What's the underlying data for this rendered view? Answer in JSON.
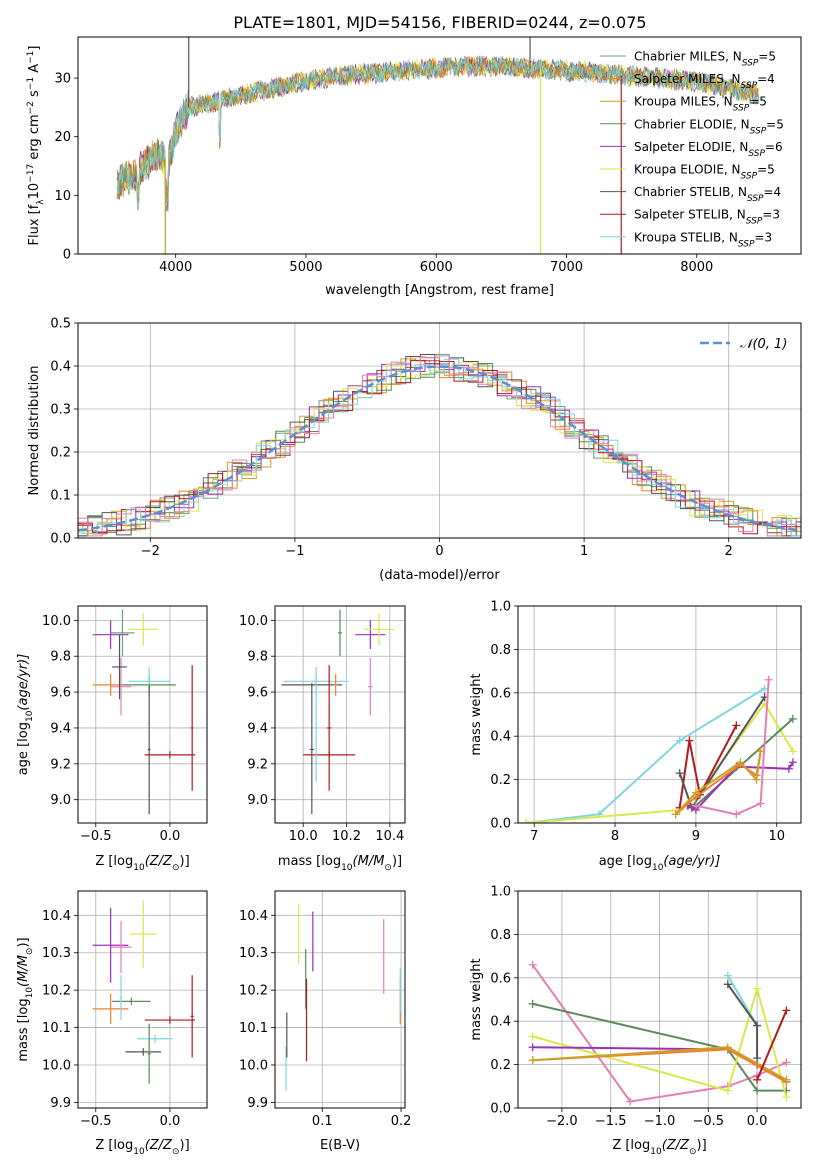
{
  "figure_title": "PLATE=1801, MJD=54156, FIBERID=0244, z=0.075",
  "palette": {
    "Chabrier MILES": "#6aa27a",
    "Salpeter MILES": "#f07f2a",
    "Kroupa MILES": "#c9a227",
    "Chabrier ELODIE": "#5b8a5c",
    "Salpeter ELODIE": "#9b30b8",
    "Kroupa ELODIE": "#d9e84a",
    "Chabrier STELIB": "#555555",
    "Salpeter STELIB": "#b01a1a",
    "Kroupa STELIB": "#7fd6e0",
    "Pink": "#e37fb6"
  },
  "chart_data": [
    {
      "id": "spectrum",
      "type": "line",
      "title": "",
      "xlabel": "wavelength [Angstrom, rest frame]",
      "ylabel_main": "Flux [f",
      "ylabel_sub": "λ",
      "ylabel_rest": "10",
      "ylabel_sup1": "−17",
      "ylabel_tail": " erg cm",
      "ylabel_sup2": "−2",
      "ylabel_tail2": " s",
      "ylabel_sup3": "−1",
      "ylabel_tail3": " A",
      "ylabel_sup4": "−1",
      "ylabel_end": "]",
      "xlim": [
        3250,
        8800
      ],
      "ylim": [
        0,
        37
      ],
      "xticks": [
        4000,
        5000,
        6000,
        7000,
        8000
      ],
      "yticks": [
        0,
        10,
        20,
        30
      ],
      "legend_placement": "right",
      "legend": [
        {
          "name": "Chabrier MILES, N",
          "sub": "SSP",
          "tail": "=5"
        },
        {
          "name": "Salpeter MILES, N",
          "sub": "SSP",
          "tail": "=4"
        },
        {
          "name": "Kroupa MILES, N",
          "sub": "SSP",
          "tail": "=5"
        },
        {
          "name": "Chabrier ELODIE, N",
          "sub": "SSP",
          "tail": "=5"
        },
        {
          "name": "Salpeter ELODIE, N",
          "sub": "SSP",
          "tail": "=6"
        },
        {
          "name": "Kroupa ELODIE, N",
          "sub": "SSP",
          "tail": "=5"
        },
        {
          "name": "Chabrier STELIB, N",
          "sub": "SSP",
          "tail": "=4"
        },
        {
          "name": "Salpeter STELIB, N",
          "sub": "SSP",
          "tail": "=3"
        },
        {
          "name": "Kroupa STELIB, N",
          "sub": "SSP",
          "tail": "=3"
        }
      ],
      "continuum": {
        "x": [
          3550,
          3700,
          3850,
          3950,
          4000,
          4100,
          4300,
          4500,
          4800,
          5000,
          5300,
          5600,
          5900,
          6200,
          6500,
          6800,
          7000,
          7200,
          7400,
          7600,
          7800,
          8000,
          8200,
          8500
        ],
        "y": [
          12,
          14,
          17,
          16,
          21,
          25,
          26,
          27,
          28.5,
          29.5,
          30.5,
          31,
          31.5,
          32,
          32,
          31.5,
          31.3,
          31,
          30.5,
          30.2,
          29.8,
          29.5,
          28.5,
          27
        ]
      },
      "spikes": [
        {
          "x": 4100,
          "y": 37,
          "series": "Chabrier STELIB"
        },
        {
          "x": 6720,
          "y": 37,
          "series": "Chabrier STELIB"
        },
        {
          "x": 3920,
          "y": 0,
          "series": "Kroupa MILES"
        },
        {
          "x": 6800,
          "y": 0,
          "series": "Kroupa ELODIE"
        },
        {
          "x": 7420,
          "y": 0,
          "series": "Salpeter STELIB"
        }
      ]
    },
    {
      "id": "residuals",
      "type": "histogram",
      "xlabel": "(data-model)/error",
      "ylabel": "Normed distribution",
      "xlim": [
        -2.5,
        2.5
      ],
      "ylim": [
        0,
        0.5
      ],
      "xticks": [
        -2,
        -1,
        0,
        1,
        2
      ],
      "xticklabels": [
        "−2",
        "−1",
        "0",
        "1",
        "2"
      ],
      "yticks": [
        0.0,
        0.1,
        0.2,
        0.3,
        0.4,
        0.5
      ],
      "yticklabels": [
        "0.0",
        "0.1",
        "0.2",
        "0.3",
        "0.4",
        "0.5"
      ],
      "legend": {
        "label": "𝒩(0, 1)",
        "placement": "top-right"
      },
      "bin_width": 0.1,
      "gaussian": {
        "mu": 0,
        "sigma": 1
      }
    },
    {
      "id": "age-vs-Z",
      "type": "errorbar",
      "xlabel": "Z [log",
      "xlabel_sub": "10",
      "xlabel_rest": "(Z/Z",
      "xlabel_sun": "⊙",
      "xlabel_end": ")]",
      "ylabel": "age  [log",
      "ylabel_sub": "10",
      "ylabel_rest": "(age/yr)]",
      "xlim": [
        -0.62,
        0.25
      ],
      "ylim": [
        8.87,
        10.08
      ],
      "xticks": [
        -0.5,
        0.0
      ],
      "xticklabels": [
        "−0.5",
        "0.0"
      ],
      "yticks": [
        9.0,
        9.2,
        9.4,
        9.6,
        9.8,
        10.0
      ],
      "yticklabels": [
        "9.0",
        "9.2",
        "9.4",
        "9.6",
        "9.8",
        "10.0"
      ],
      "points": [
        {
          "series": "Salpeter ELODIE",
          "x": -0.4,
          "xerr": 0.12,
          "y": 9.92,
          "yerr": 0.08
        },
        {
          "series": "Chabrier MILES",
          "x": -0.32,
          "xerr": 0.08,
          "y": 9.93,
          "yerr": 0.13
        },
        {
          "series": "Kroupa ELODIE",
          "x": -0.18,
          "xerr": 0.1,
          "y": 9.95,
          "yerr": 0.09
        },
        {
          "series": "Pink",
          "x": -0.33,
          "xerr": 0.07,
          "y": 9.63,
          "yerr": 0.16
        },
        {
          "series": "Salpeter MILES",
          "x": -0.4,
          "xerr": 0.12,
          "y": 9.64,
          "yerr": 0.06
        },
        {
          "series": "Chabrier STELIB",
          "x": -0.34,
          "xerr": 0.05,
          "y": 9.74,
          "yerr": 0.18
        },
        {
          "series": "Chabrier ELODIE",
          "x": -0.14,
          "xerr": 0.18,
          "y": 9.64,
          "yerr": 0.05
        },
        {
          "series": "Kroupa STELIB",
          "x": -0.14,
          "xerr": 0.14,
          "y": 9.66,
          "yerr": 0.08
        },
        {
          "series": "Chabrier STELIB",
          "x": -0.14,
          "xerr": 0.01,
          "y": 9.28,
          "yerr": 0.36
        },
        {
          "series": "Salpeter STELIB",
          "x": 0.0,
          "xerr": 0.17,
          "y": 9.25,
          "yerr": 0.02
        },
        {
          "series": "Salpeter STELIB",
          "x": 0.15,
          "xerr": 0.01,
          "y": 9.4,
          "yerr": 0.35
        }
      ]
    },
    {
      "id": "age-vs-mass",
      "type": "errorbar",
      "xlabel": "mass [log",
      "xlabel_sub": "10",
      "xlabel_rest": "(M/M",
      "xlabel_sun": "⊙",
      "xlabel_end": ")]",
      "xlim": [
        9.87,
        10.47
      ],
      "ylim": [
        8.87,
        10.08
      ],
      "xticks": [
        10.0,
        10.2,
        10.4
      ],
      "xticklabels": [
        "10.0",
        "10.2",
        "10.4"
      ],
      "yticks": [
        9.0,
        9.2,
        9.4,
        9.6,
        9.8,
        10.0
      ],
      "yticklabels": [
        "9.0",
        "9.2",
        "9.4",
        "9.6",
        "9.8",
        "10.0"
      ],
      "points": [
        {
          "series": "Chabrier ELODIE",
          "x": 10.17,
          "xerr": 0.01,
          "y": 9.93,
          "yerr": 0.13
        },
        {
          "series": "Salpeter ELODIE",
          "x": 10.31,
          "xerr": 0.07,
          "y": 9.92,
          "yerr": 0.08
        },
        {
          "series": "Kroupa ELODIE",
          "x": 10.35,
          "xerr": 0.07,
          "y": 9.95,
          "yerr": 0.09
        },
        {
          "series": "Pink",
          "x": 10.31,
          "xerr": 0.01,
          "y": 9.63,
          "yerr": 0.16
        },
        {
          "series": "Kroupa STELIB",
          "x": 10.06,
          "xerr": 0.15,
          "y": 9.66,
          "yerr": 0.08
        },
        {
          "series": "Chabrier STELIB",
          "x": 10.04,
          "xerr": 0.14,
          "y": 9.64,
          "yerr": 0.01
        },
        {
          "series": "Salpeter MILES",
          "x": 10.15,
          "xerr": 0.01,
          "y": 9.64,
          "yerr": 0.06
        },
        {
          "series": "Chabrier STELIB",
          "x": 10.04,
          "xerr": 0.01,
          "y": 9.28,
          "yerr": 0.36
        },
        {
          "series": "Salpeter STELIB",
          "x": 10.12,
          "xerr": 0.12,
          "y": 9.25,
          "yerr": 0.02
        },
        {
          "series": "Salpeter STELIB",
          "x": 10.12,
          "xerr": 0.01,
          "y": 9.4,
          "yerr": 0.35
        },
        {
          "series": "Kroupa STELIB",
          "x": 10.06,
          "xerr": 0.01,
          "y": 9.4,
          "yerr": 0.3
        }
      ]
    },
    {
      "id": "massweight-vs-age",
      "type": "line",
      "xlabel": "age  [log",
      "xlabel_sub": "10",
      "xlabel_rest": "(age/yr)]",
      "ylabel": "mass weight",
      "xlim": [
        6.8,
        10.3
      ],
      "ylim": [
        0.0,
        1.0
      ],
      "xticks": [
        7,
        8,
        9,
        10
      ],
      "xticklabels": [
        "7",
        "8",
        "9",
        "10"
      ],
      "yticks": [
        0.0,
        0.2,
        0.4,
        0.6,
        0.8,
        1.0
      ],
      "yticklabels": [
        "0.0",
        "0.2",
        "0.4",
        "0.6",
        "0.8",
        "1.0"
      ],
      "series": [
        {
          "name": "Kroupa STELIB",
          "x": [
            6.9,
            7.8,
            8.8,
            9.85
          ],
          "y": [
            0.0,
            0.04,
            0.38,
            0.62
          ]
        },
        {
          "name": "Kroupa ELODIE",
          "x": [
            6.9,
            8.8,
            9.0,
            9.85,
            10.2
          ],
          "y": [
            0.0,
            0.06,
            0.12,
            0.55,
            0.33
          ]
        },
        {
          "name": "Salpeter STELIB",
          "x": [
            8.8,
            8.92,
            9.05,
            9.5
          ],
          "y": [
            0.07,
            0.38,
            0.13,
            0.45
          ]
        },
        {
          "name": "Chabrier STELIB",
          "x": [
            8.8,
            8.95,
            9.85
          ],
          "y": [
            0.23,
            0.07,
            0.58
          ]
        },
        {
          "name": "Chabrier ELODIE",
          "x": [
            8.9,
            9.0,
            10.2
          ],
          "y": [
            0.08,
            0.08,
            0.48
          ]
        },
        {
          "name": "Salpeter ELODIE",
          "x": [
            8.9,
            9.0,
            9.5,
            10.15,
            10.2
          ],
          "y": [
            0.08,
            0.06,
            0.26,
            0.25,
            0.28
          ]
        },
        {
          "name": "Salpeter MILES",
          "x": [
            8.75,
            9.0,
            9.55,
            9.75,
            9.8
          ],
          "y": [
            0.04,
            0.12,
            0.27,
            0.22,
            0.33
          ]
        },
        {
          "name": "Kroupa MILES",
          "x": [
            8.75,
            9.0,
            9.55,
            9.75,
            9.8
          ],
          "y": [
            0.04,
            0.14,
            0.28,
            0.2,
            0.33
          ]
        },
        {
          "name": "Pink",
          "x": [
            9.0,
            9.5,
            9.8,
            9.9
          ],
          "y": [
            0.08,
            0.04,
            0.09,
            0.66
          ]
        }
      ]
    },
    {
      "id": "mass-vs-Z",
      "type": "errorbar",
      "xlabel": "Z [log",
      "xlabel_sub": "10",
      "xlabel_rest": "(Z/Z",
      "xlabel_sun": "⊙",
      "xlabel_end": ")]",
      "ylabel": "mass [log",
      "ylabel_sub": "10",
      "ylabel_rest": "(M/M",
      "ylabel_sun": "⊙",
      "ylabel_end": ")]",
      "xlim": [
        -0.62,
        0.25
      ],
      "ylim": [
        9.885,
        10.465
      ],
      "xticks": [
        -0.5,
        0.0
      ],
      "xticklabels": [
        "−0.5",
        "0.0"
      ],
      "yticks": [
        9.9,
        10.0,
        10.1,
        10.2,
        10.3,
        10.4
      ],
      "yticklabels": [
        "9.9",
        "10.0",
        "10.1",
        "10.2",
        "10.3",
        "10.4"
      ],
      "points": [
        {
          "series": "Salpeter ELODIE",
          "x": -0.4,
          "xerr": 0.12,
          "y": 10.32,
          "yerr": 0.1
        },
        {
          "series": "Pink",
          "x": -0.33,
          "xerr": 0.07,
          "y": 10.315,
          "yerr": 0.07
        },
        {
          "series": "Kroupa ELODIE",
          "x": -0.18,
          "xerr": 0.09,
          "y": 10.35,
          "yerr": 0.09
        },
        {
          "series": "Chabrier ELODIE",
          "x": -0.26,
          "xerr": 0.13,
          "y": 10.17,
          "yerr": 0.01
        },
        {
          "series": "Salpeter MILES",
          "x": -0.4,
          "xerr": 0.12,
          "y": 10.15,
          "yerr": 0.04
        },
        {
          "series": "Kroupa STELIB",
          "x": -0.33,
          "xerr": 0.01,
          "y": 10.18,
          "yerr": 0.06
        },
        {
          "series": "Kroupa STELIB",
          "x": -0.1,
          "xerr": 0.12,
          "y": 10.07,
          "yerr": 0.01
        },
        {
          "series": "Chabrier STELIB",
          "x": -0.18,
          "xerr": 0.12,
          "y": 10.035,
          "yerr": 0.01
        },
        {
          "series": "Chabrier ELODIE",
          "x": -0.14,
          "xerr": 0.01,
          "y": 10.03,
          "yerr": 0.08
        },
        {
          "series": "Salpeter STELIB",
          "x": 0.0,
          "xerr": 0.17,
          "y": 10.12,
          "yerr": 0.01
        },
        {
          "series": "Salpeter STELIB",
          "x": 0.15,
          "xerr": 0.01,
          "y": 10.13,
          "yerr": 0.11
        }
      ]
    },
    {
      "id": "mass-vs-EBV",
      "type": "errorbar",
      "xlabel": "E(B-V)",
      "xlim": [
        0.04,
        0.205
      ],
      "ylim": [
        9.885,
        10.465
      ],
      "xticks": [
        0.1,
        0.2
      ],
      "xticklabels": [
        "0.1",
        "0.2"
      ],
      "yticks": [
        9.9,
        10.0,
        10.1,
        10.2,
        10.3,
        10.4
      ],
      "yticklabels": [
        "9.9",
        "10.0",
        "10.1",
        "10.2",
        "10.3",
        "10.4"
      ],
      "points": [
        {
          "series": "Kroupa STELIB",
          "x": 0.054,
          "xerr": 0.0,
          "y": 9.99,
          "yerr": 0.06
        },
        {
          "series": "Chabrier STELIB",
          "x": 0.055,
          "xerr": 0.0,
          "y": 10.08,
          "yerr": 0.06
        },
        {
          "series": "Kroupa ELODIE",
          "x": 0.07,
          "xerr": 0.0,
          "y": 10.35,
          "yerr": 0.08
        },
        {
          "series": "Chabrier ELODIE",
          "x": 0.079,
          "xerr": 0.0,
          "y": 10.23,
          "yerr": 0.08
        },
        {
          "series": "Salpeter STELIB",
          "x": 0.08,
          "xerr": 0.0,
          "y": 10.12,
          "yerr": 0.11
        },
        {
          "series": "Salpeter ELODIE",
          "x": 0.088,
          "xerr": 0.0,
          "y": 10.33,
          "yerr": 0.08
        },
        {
          "series": "Pink",
          "x": 0.178,
          "xerr": 0.0,
          "y": 10.29,
          "yerr": 0.1
        },
        {
          "series": "Salpeter MILES",
          "x": 0.199,
          "xerr": 0.0,
          "y": 10.17,
          "yerr": 0.06
        },
        {
          "series": "Kroupa STELIB",
          "x": 0.199,
          "xerr": 0.0,
          "y": 10.2,
          "yerr": 0.06
        }
      ]
    },
    {
      "id": "massweight-vs-Z",
      "type": "line",
      "xlabel": "Z [log",
      "xlabel_sub": "10",
      "xlabel_rest": "(Z/Z",
      "xlabel_sun": "⊙",
      "xlabel_end": ")]",
      "ylabel": "mass weight",
      "xlim": [
        -2.45,
        0.45
      ],
      "ylim": [
        0.0,
        1.0
      ],
      "xticks": [
        -2.0,
        -1.5,
        -1.0,
        -0.5,
        0.0
      ],
      "xticklabels": [
        "−2.0",
        "−1.5",
        "−1.0",
        "−0.5",
        "0.0"
      ],
      "yticks": [
        0.0,
        0.2,
        0.4,
        0.6,
        0.8,
        1.0
      ],
      "yticklabels": [
        "0.0",
        "0.2",
        "0.4",
        "0.6",
        "0.8",
        "1.0"
      ],
      "series": [
        {
          "name": "Pink",
          "x": [
            -2.3,
            -1.3,
            -0.3,
            0.0,
            0.3
          ],
          "y": [
            0.66,
            0.03,
            0.1,
            0.15,
            0.21
          ]
        },
        {
          "name": "Chabrier ELODIE",
          "x": [
            -2.3,
            -0.3,
            0.0,
            0.3
          ],
          "y": [
            0.48,
            0.27,
            0.08,
            0.08
          ]
        },
        {
          "name": "Kroupa ELODIE",
          "x": [
            -2.3,
            -0.3,
            0.0,
            0.3
          ],
          "y": [
            0.33,
            0.08,
            0.55,
            0.05
          ]
        },
        {
          "name": "Salpeter ELODIE",
          "x": [
            -2.3,
            -0.3,
            0.0,
            0.3
          ],
          "y": [
            0.28,
            0.27,
            0.2,
            0.12
          ]
        },
        {
          "name": "Salpeter MILES",
          "x": [
            -2.3,
            -0.3,
            0.3
          ],
          "y": [
            0.22,
            0.27,
            0.12
          ]
        },
        {
          "name": "Kroupa MILES",
          "x": [
            -2.3,
            -0.3,
            0.3
          ],
          "y": [
            0.22,
            0.28,
            0.13
          ]
        },
        {
          "name": "Kroupa STELIB",
          "x": [
            -0.3,
            0.0
          ],
          "y": [
            0.61,
            0.38
          ]
        },
        {
          "name": "Chabrier STELIB",
          "x": [
            -0.3,
            0.0,
            0.0
          ],
          "y": [
            0.57,
            0.38,
            0.23
          ]
        },
        {
          "name": "Salpeter STELIB",
          "x": [
            0.0,
            0.3
          ],
          "y": [
            0.13,
            0.45
          ]
        }
      ]
    }
  ]
}
